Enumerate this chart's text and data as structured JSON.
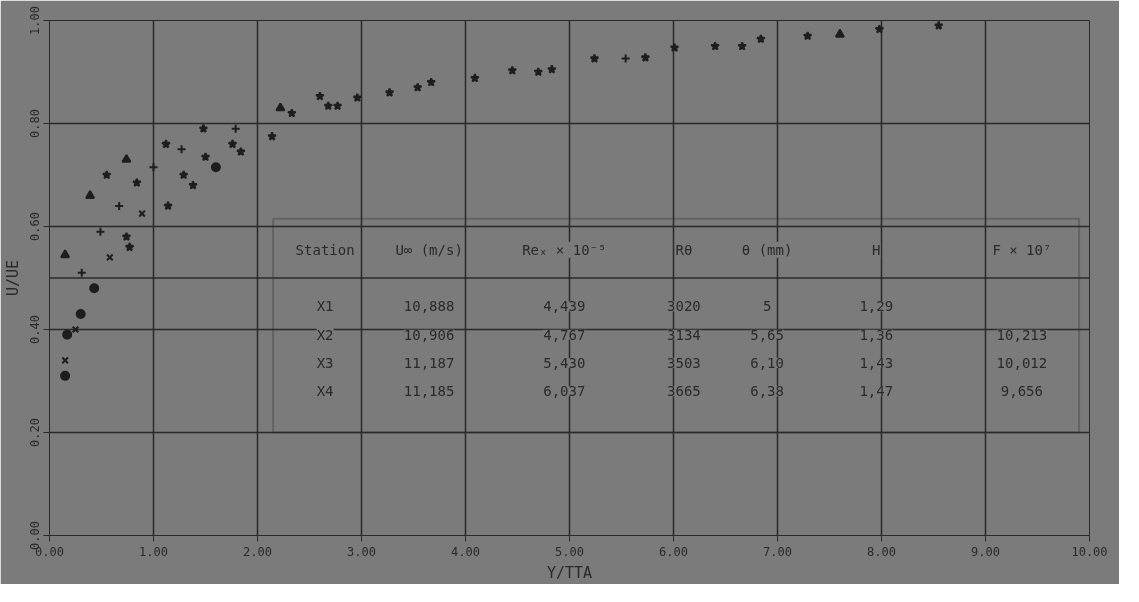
{
  "chart_data": {
    "type": "scatter",
    "xlabel": "Y/TTA",
    "ylabel": "U/UE",
    "xlim": [
      0,
      10
    ],
    "ylim": [
      0,
      1
    ],
    "xticks": [
      {
        "value": 0,
        "label": "0.00"
      },
      {
        "value": 1,
        "label": "1.00"
      },
      {
        "value": 2,
        "label": "2.00"
      },
      {
        "value": 3,
        "label": "3.00"
      },
      {
        "value": 4,
        "label": "4.00"
      },
      {
        "value": 5,
        "label": "5.00"
      },
      {
        "value": 6,
        "label": "6.00"
      },
      {
        "value": 7,
        "label": "7.00"
      },
      {
        "value": 8,
        "label": "8.00"
      },
      {
        "value": 9,
        "label": "9.00"
      },
      {
        "value": 10,
        "label": "10.00"
      }
    ],
    "yticks": [
      {
        "value": 0,
        "label": "0.00"
      },
      {
        "value": 0.2,
        "label": "0.20"
      },
      {
        "value": 0.4,
        "label": "0.40"
      },
      {
        "value": 0.6,
        "label": "0.60"
      },
      {
        "value": 0.8,
        "label": "0.80"
      },
      {
        "value": 1,
        "label": "1.00"
      }
    ],
    "grid": true,
    "series": [
      {
        "marker": "triangle",
        "color": "#1e1e1e",
        "x": [
          0.15,
          0.39,
          0.74,
          2.22,
          7.6
        ],
        "values": [
          0.545,
          0.66,
          0.73,
          0.83,
          0.973
        ]
      },
      {
        "marker": "cross",
        "color": "#1e1e1e",
        "x": [
          0.31,
          0.49,
          0.67,
          1.0,
          1.27,
          1.79,
          5.54
        ],
        "values": [
          0.51,
          0.59,
          0.64,
          0.715,
          0.75,
          0.79,
          0.926
        ]
      },
      {
        "marker": "x",
        "color": "#1e1e1e",
        "x": [
          0.15,
          0.25,
          0.58,
          0.89
        ],
        "values": [
          0.34,
          0.4,
          0.54,
          0.625
        ]
      },
      {
        "marker": "circle",
        "color": "#1e1e1e",
        "x": [
          0.15,
          0.17,
          0.3,
          0.43,
          1.6
        ],
        "values": [
          0.31,
          0.39,
          0.43,
          0.48,
          0.715
        ]
      },
      {
        "marker": "star",
        "color": "#1e1e1e",
        "x": [
          0.55,
          0.74,
          0.77,
          0.84,
          1.12,
          1.14,
          1.29,
          1.38,
          1.48,
          1.5,
          1.76,
          1.84,
          2.14,
          2.33,
          2.6,
          2.68,
          2.77,
          2.96,
          3.27,
          3.54,
          3.67,
          4.09,
          4.45,
          4.7,
          4.83,
          5.24,
          5.73,
          6.01,
          6.4,
          6.66,
          6.84,
          7.29,
          7.98,
          8.55
        ],
        "values": [
          0.7,
          0.58,
          0.56,
          0.685,
          0.76,
          0.64,
          0.7,
          0.68,
          0.79,
          0.735,
          0.76,
          0.745,
          0.775,
          0.82,
          0.853,
          0.834,
          0.834,
          0.85,
          0.86,
          0.87,
          0.88,
          0.888,
          0.903,
          0.9,
          0.905,
          0.926,
          0.928,
          0.947,
          0.95,
          0.95,
          0.964,
          0.97,
          0.983,
          0.99
        ]
      }
    ],
    "annotations": [
      "Station  U∞ (m/s)  Reₓ × 10⁻⁵  Rθ  θ (mm)  H  F × 10⁷",
      "X1  10,888  4,439  3020  5  1,29",
      "X2  10,906  4,767  3134  5,65  1,36  10,213",
      "X3  11,187  5,430  3503  6,10  1,43  10,012",
      "X4  11,185  6,037  3665  6,38  1,47  9,656"
    ]
  }
}
